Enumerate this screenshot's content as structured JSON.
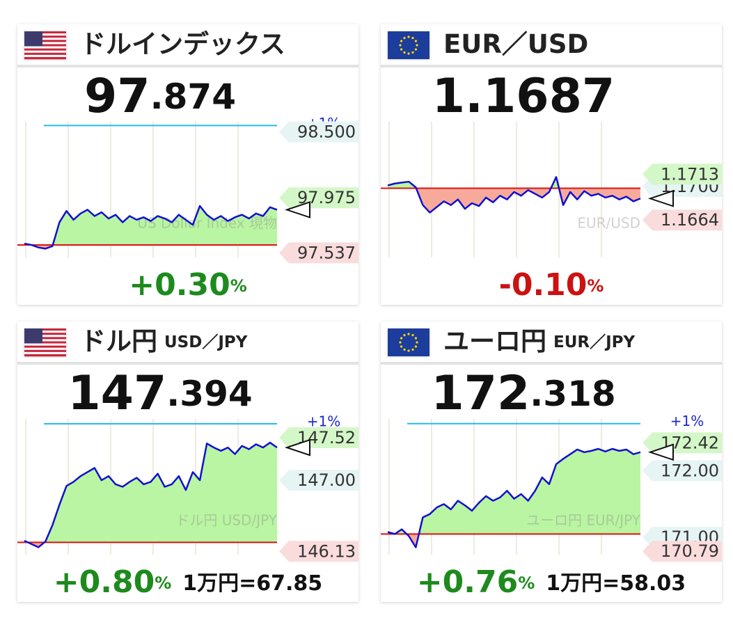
{
  "chart_data": [
    {
      "type": "line",
      "title": "ドルインデックス",
      "flag": "us",
      "price": "97",
      "price_small": ".874",
      "change": "+0.30",
      "change_unit": "%",
      "change_color": "#1e8a1e",
      "watermark": "US Dollar Index 現物",
      "color": "#1010d0",
      "ylim": [
        97.5,
        98.58
      ],
      "base": 97.6,
      "upper": 98.55,
      "upper_label": "+1%",
      "yticks": [
        {
          "value": 98.5,
          "label": "98.500"
        },
        {
          "value": 97.975,
          "label": "97.975"
        },
        {
          "value": 97.537,
          "label": "97.537"
        }
      ],
      "tick_colors": [
        "#e6f4f4",
        "#d4f7c8",
        "#fadcdc"
      ],
      "values": [
        97.61,
        97.6,
        97.58,
        97.57,
        97.59,
        97.78,
        97.87,
        97.8,
        97.85,
        97.88,
        97.83,
        97.86,
        97.81,
        97.84,
        97.78,
        97.83,
        97.8,
        97.82,
        97.79,
        97.83,
        97.81,
        97.78,
        97.84,
        97.8,
        97.76,
        97.91,
        97.84,
        97.8,
        97.83,
        97.79,
        97.82,
        97.84,
        97.81,
        97.85,
        97.83,
        97.9,
        97.88
      ]
    },
    {
      "type": "line",
      "title": "EUR／USD",
      "flag": "eu",
      "price": "1.1687",
      "change": "-0.10",
      "change_unit": "%",
      "change_color": "#cc1111",
      "watermark": "EUR/USD",
      "color": "#1010d0",
      "ylim": [
        1.1624,
        1.1769
      ],
      "base": 1.1698,
      "yticks": [
        {
          "value": 1.17,
          "label": "1.1700"
        },
        {
          "value": 1.1713,
          "label": "1.1713"
        },
        {
          "value": 1.1664,
          "label": "1.1664"
        }
      ],
      "tick_colors": [
        "#e6f4f4",
        "#d4f7c8",
        "#fadcdc"
      ],
      "values": [
        1.1701,
        1.1703,
        1.1704,
        1.1705,
        1.1699,
        1.168,
        1.1672,
        1.1678,
        1.1684,
        1.168,
        1.1686,
        1.1676,
        1.1682,
        1.1679,
        1.1688,
        1.1683,
        1.169,
        1.1686,
        1.1694,
        1.169,
        1.1696,
        1.1692,
        1.1688,
        1.1694,
        1.171,
        1.168,
        1.1694,
        1.1686,
        1.1695,
        1.169,
        1.1692,
        1.1688,
        1.169,
        1.1686,
        1.1689,
        1.1684,
        1.1687
      ]
    },
    {
      "type": "line",
      "title": "ドル円",
      "subtitle": "USD／JPY",
      "flag": "us",
      "price": "147",
      "price_small": ".394",
      "change": "+0.80",
      "change_unit": "%",
      "change_color": "#1e8a1e",
      "note": "1万円=67.85",
      "watermark": "ドル円 USD/JPY",
      "color": "#1010d0",
      "ylim": [
        146.09,
        147.75
      ],
      "base": 146.24,
      "upper": 147.69,
      "upper_label": "+1%",
      "yticks": [
        {
          "value": 147,
          "label": "147.00"
        },
        {
          "value": 147.52,
          "label": "147.52"
        },
        {
          "value": 146.13,
          "label": "146.13"
        }
      ],
      "tick_colors": [
        "#e6f4f4",
        "#d4f7c8",
        "#fadcdc"
      ],
      "values": [
        146.26,
        146.22,
        146.18,
        146.25,
        146.45,
        146.7,
        146.93,
        146.98,
        147.05,
        147.1,
        147.15,
        147.0,
        147.05,
        146.95,
        146.92,
        146.98,
        147.03,
        146.95,
        146.98,
        147.08,
        146.92,
        146.95,
        147.05,
        146.88,
        147.1,
        147.0,
        147.45,
        147.4,
        147.36,
        147.4,
        147.32,
        147.42,
        147.38,
        147.44,
        147.4,
        147.46,
        147.4
      ]
    },
    {
      "type": "line",
      "title": "ユーロ円",
      "subtitle": "EUR／JPY",
      "flag": "eu",
      "price": "172",
      "price_small": ".318",
      "change": "+0.76",
      "change_unit": "%",
      "change_color": "#1e8a1e",
      "note": "1万円=58.03",
      "watermark": "ユーロ円 EUR/JPY",
      "color": "#1010d0",
      "ylim": [
        170.74,
        172.78
      ],
      "base": 171.05,
      "upper": 172.71,
      "upper_label": "+1%",
      "yticks": [
        {
          "value": 171,
          "label": "171.00"
        },
        {
          "value": 172,
          "label": "172.00"
        },
        {
          "value": 172.42,
          "label": "172.42"
        },
        {
          "value": 170.79,
          "label": "170.79"
        }
      ],
      "tick_colors": [
        "#e6f4f4",
        "#e6f4f4",
        "#d4f7c8",
        "#fadcdc"
      ],
      "values": [
        171.08,
        171.05,
        171.12,
        171.02,
        170.85,
        171.3,
        171.35,
        171.45,
        171.5,
        171.42,
        171.55,
        171.48,
        171.4,
        171.52,
        171.62,
        171.55,
        171.6,
        171.7,
        171.58,
        171.65,
        171.55,
        171.7,
        171.9,
        171.8,
        172.1,
        172.18,
        172.25,
        172.32,
        172.28,
        172.3,
        172.33,
        172.29,
        172.33,
        172.3,
        172.32,
        172.25,
        172.28
      ]
    }
  ]
}
